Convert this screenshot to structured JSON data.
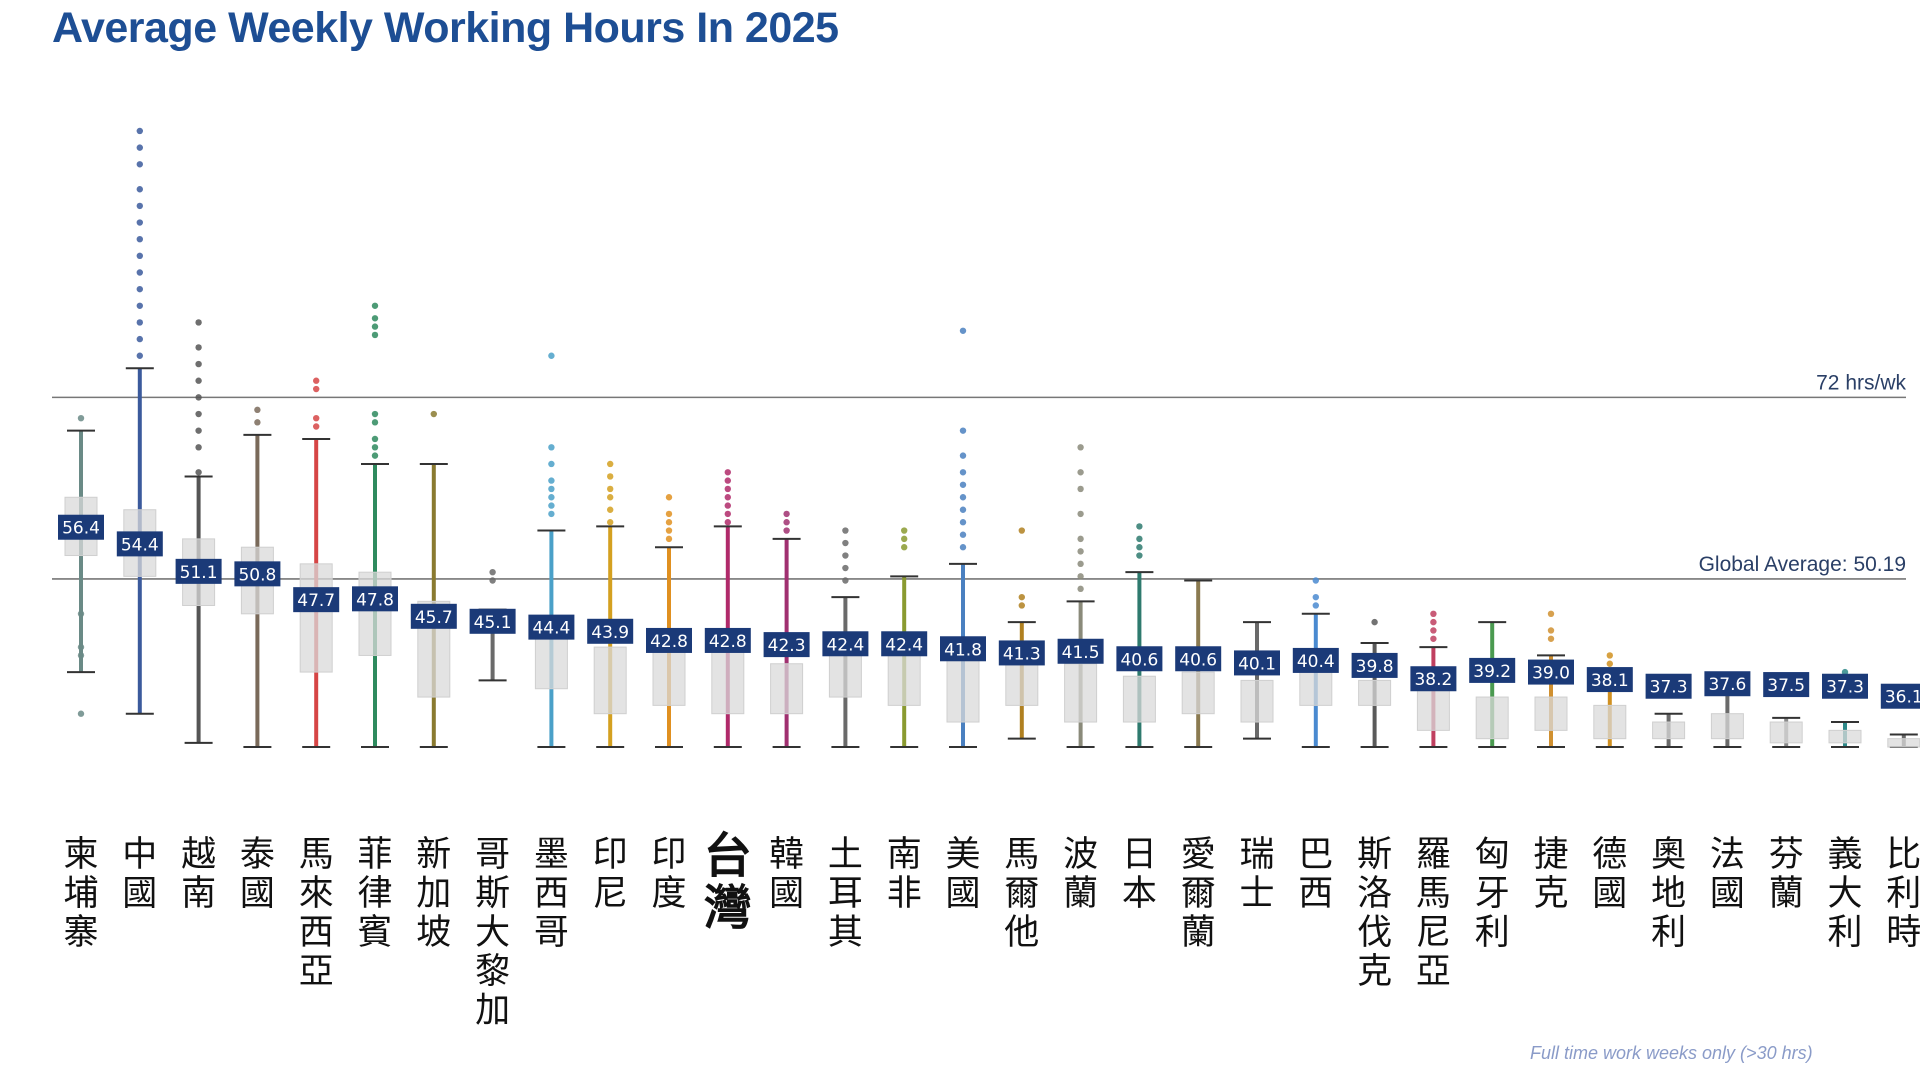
{
  "chart_data": {
    "type": "box",
    "title": "Average Weekly Working Hours In 2025",
    "footnote": "Full time work weeks only (>30 hrs)",
    "reference_lines": [
      {
        "label": "72 hrs/wk",
        "value": 72
      },
      {
        "label": "Global Average: 50.19",
        "value": 50.19
      }
    ],
    "ylim": [
      30,
      107
    ],
    "grid": false,
    "highlight_category": "台灣",
    "label_color": "#1b3a78",
    "series": [
      {
        "category": "柬埔寨",
        "mean_label": "56.4",
        "mean": 56.4,
        "whisker_low": 39.0,
        "q1": 53.0,
        "q3": 60.0,
        "whisker_high": 68.0,
        "color": "#6a8a86",
        "outliers": [
          69.5,
          46.0,
          42.0,
          41.0,
          34.0
        ]
      },
      {
        "category": "中國",
        "mean_label": "54.4",
        "mean": 54.4,
        "whisker_low": 34.0,
        "q1": 50.5,
        "q3": 58.5,
        "whisker_high": 75.5,
        "color": "#3b5a9c",
        "outliers": [
          77.0,
          79.0,
          81.0,
          83.0,
          85.0,
          87.0,
          89.0,
          91.0,
          93.0,
          95.0,
          97.0,
          100.0,
          102.0,
          104.0
        ]
      },
      {
        "category": "越南",
        "mean_label": "51.1",
        "mean": 51.1,
        "whisker_low": 30.5,
        "q1": 47.0,
        "q3": 55.0,
        "whisker_high": 62.5,
        "color": "#555555",
        "outliers": [
          63.0,
          66.0,
          68.0,
          70.0,
          72.0,
          74.0,
          76.0,
          78.0,
          81.0
        ]
      },
      {
        "category": "泰國",
        "mean_label": "50.8",
        "mean": 50.8,
        "whisker_low": 30.0,
        "q1": 46.0,
        "q3": 54.0,
        "whisker_high": 67.5,
        "color": "#7a6a5a",
        "outliers": [
          69.0,
          70.5
        ]
      },
      {
        "category": "馬來西亞",
        "mean_label": "47.7",
        "mean": 47.7,
        "whisker_low": 30.0,
        "q1": 39.0,
        "q3": 52.0,
        "whisker_high": 67.0,
        "color": "#d64545",
        "outliers": [
          68.5,
          69.5,
          73.0,
          74.0
        ]
      },
      {
        "category": "菲律賓",
        "mean_label": "47.8",
        "mean": 47.8,
        "whisker_low": 30.0,
        "q1": 41.0,
        "q3": 51.0,
        "whisker_high": 64.0,
        "color": "#2e8a5e",
        "outliers": [
          65.0,
          66.0,
          67.0,
          69.0,
          70.0,
          79.5,
          80.5,
          81.5,
          83.0
        ]
      },
      {
        "category": "新加坡",
        "mean_label": "45.7",
        "mean": 45.7,
        "whisker_low": 30.0,
        "q1": 36.0,
        "q3": 47.5,
        "whisker_high": 64.0,
        "color": "#8a7a30",
        "outliers": [
          70.0
        ]
      },
      {
        "category": "哥斯大黎加",
        "mean_label": "45.1",
        "mean": 45.1,
        "whisker_low": 38.0,
        "q1": 44.0,
        "q3": 46.0,
        "whisker_high": 46.5,
        "color": "#6a6a6a",
        "outliers": [
          50.0,
          51.0
        ]
      },
      {
        "category": "墨西哥",
        "mean_label": "44.4",
        "mean": 44.4,
        "whisker_low": 30.0,
        "q1": 37.0,
        "q3": 45.5,
        "whisker_high": 56.0,
        "color": "#4aa0c8",
        "outliers": [
          58.0,
          59.0,
          60.0,
          61.0,
          62.0,
          64.0,
          66.0,
          77.0
        ]
      },
      {
        "category": "印尼",
        "mean_label": "43.9",
        "mean": 43.9,
        "whisker_low": 30.0,
        "q1": 34.0,
        "q3": 42.0,
        "whisker_high": 56.5,
        "color": "#d4a020",
        "outliers": [
          57.0,
          58.5,
          60.0,
          61.0,
          62.5,
          64.0
        ]
      },
      {
        "category": "印度",
        "mean_label": "42.8",
        "mean": 42.8,
        "whisker_low": 30.0,
        "q1": 35.0,
        "q3": 42.0,
        "whisker_high": 54.0,
        "color": "#e09020",
        "outliers": [
          55.0,
          56.0,
          57.0,
          58.0,
          60.0
        ]
      },
      {
        "category": "台灣",
        "mean_label": "42.8",
        "mean": 42.8,
        "whisker_low": 30.0,
        "q1": 34.0,
        "q3": 42.5,
        "whisker_high": 56.5,
        "color": "#b02a6a",
        "outliers": [
          57.0,
          58.0,
          59.0,
          60.0,
          61.0,
          62.0,
          63.0
        ]
      },
      {
        "category": "韓國",
        "mean_label": "42.3",
        "mean": 42.3,
        "whisker_low": 30.0,
        "q1": 34.0,
        "q3": 40.0,
        "whisker_high": 55.0,
        "color": "#a03070",
        "outliers": [
          56.0,
          57.0,
          58.0
        ]
      },
      {
        "category": "土耳其",
        "mean_label": "42.4",
        "mean": 42.4,
        "whisker_low": 30.0,
        "q1": 36.0,
        "q3": 43.0,
        "whisker_high": 48.0,
        "color": "#6a6a6a",
        "outliers": [
          50.0,
          51.5,
          53.0,
          54.5,
          56.0
        ]
      },
      {
        "category": "南非",
        "mean_label": "42.4",
        "mean": 42.4,
        "whisker_low": 30.0,
        "q1": 35.0,
        "q3": 42.0,
        "whisker_high": 50.5,
        "color": "#8a9a30",
        "outliers": [
          54.0,
          55.0,
          56.0
        ]
      },
      {
        "category": "美國",
        "mean_label": "41.8",
        "mean": 41.8,
        "whisker_low": 30.0,
        "q1": 33.0,
        "q3": 42.0,
        "whisker_high": 52.0,
        "color": "#4a80c0",
        "outliers": [
          54.0,
          55.5,
          57.0,
          58.5,
          60.0,
          61.5,
          63.0,
          65.0,
          68.0,
          80.0
        ]
      },
      {
        "category": "馬爾他",
        "mean_label": "41.3",
        "mean": 41.3,
        "whisker_low": 31.0,
        "q1": 35.0,
        "q3": 40.0,
        "whisker_high": 45.0,
        "color": "#b08020",
        "outliers": [
          47.0,
          48.0,
          56.0
        ]
      },
      {
        "category": "波蘭",
        "mean_label": "41.5",
        "mean": 41.5,
        "whisker_low": 30.0,
        "q1": 33.0,
        "q3": 40.0,
        "whisker_high": 47.5,
        "color": "#8a8a7a",
        "outliers": [
          49.0,
          50.5,
          52.0,
          53.5,
          55.0,
          58.0,
          61.0,
          63.0,
          66.0
        ]
      },
      {
        "category": "日本",
        "mean_label": "40.6",
        "mean": 40.6,
        "whisker_low": 30.0,
        "q1": 33.0,
        "q3": 38.5,
        "whisker_high": 51.0,
        "color": "#2e7a6e",
        "outliers": [
          53.0,
          54.0,
          55.0,
          56.5
        ]
      },
      {
        "category": "愛爾蘭",
        "mean_label": "40.6",
        "mean": 40.6,
        "whisker_low": 30.0,
        "q1": 34.0,
        "q3": 39.0,
        "whisker_high": 50.0,
        "color": "#8a7a50",
        "outliers": []
      },
      {
        "category": "瑞士",
        "mean_label": "40.1",
        "mean": 40.1,
        "whisker_low": 31.0,
        "q1": 33.0,
        "q3": 38.0,
        "whisker_high": 45.0,
        "color": "#6a6a6a",
        "outliers": []
      },
      {
        "category": "巴西",
        "mean_label": "40.4",
        "mean": 40.4,
        "whisker_low": 30.0,
        "q1": 35.0,
        "q3": 40.0,
        "whisker_high": 46.0,
        "color": "#4a8ad0",
        "outliers": [
          47.0,
          48.0,
          50.0
        ]
      },
      {
        "category": "斯洛伐克",
        "mean_label": "39.8",
        "mean": 39.8,
        "whisker_low": 30.0,
        "q1": 35.0,
        "q3": 38.0,
        "whisker_high": 42.5,
        "color": "#5a5a5a",
        "outliers": [
          45.0
        ]
      },
      {
        "category": "羅馬尼亞",
        "mean_label": "38.2",
        "mean": 38.2,
        "whisker_low": 30.0,
        "q1": 32.0,
        "q3": 37.0,
        "whisker_high": 42.0,
        "color": "#c04060",
        "outliers": [
          43.0,
          44.0,
          45.0,
          46.0
        ]
      },
      {
        "category": "匈牙利",
        "mean_label": "39.2",
        "mean": 39.2,
        "whisker_low": 30.0,
        "q1": 31.0,
        "q3": 36.0,
        "whisker_high": 45.0,
        "color": "#4a9a50",
        "outliers": []
      },
      {
        "category": "捷克",
        "mean_label": "39.0",
        "mean": 39.0,
        "whisker_low": 30.0,
        "q1": 32.0,
        "q3": 36.0,
        "whisker_high": 41.0,
        "color": "#d09030",
        "outliers": [
          43.0,
          44.0,
          46.0
        ]
      },
      {
        "category": "德國",
        "mean_label": "38.1",
        "mean": 38.1,
        "whisker_low": 30.0,
        "q1": 31.0,
        "q3": 35.0,
        "whisker_high": 38.5,
        "color": "#d09020",
        "outliers": [
          40.0,
          41.0
        ]
      },
      {
        "category": "奧地利",
        "mean_label": "37.3",
        "mean": 37.3,
        "whisker_low": 30.0,
        "q1": 31.0,
        "q3": 33.0,
        "whisker_high": 34.0,
        "color": "#6a6a6a",
        "outliers": []
      },
      {
        "category": "法國",
        "mean_label": "37.6",
        "mean": 37.6,
        "whisker_low": 30.0,
        "q1": 31.0,
        "q3": 34.0,
        "whisker_high": 38.5,
        "color": "#6a6a6a",
        "outliers": []
      },
      {
        "category": "芬蘭",
        "mean_label": "37.5",
        "mean": 37.5,
        "whisker_low": 30.0,
        "q1": 30.5,
        "q3": 33.0,
        "whisker_high": 33.5,
        "color": "#8a8a8a",
        "outliers": []
      },
      {
        "category": "義大利",
        "mean_label": "37.3",
        "mean": 37.3,
        "whisker_low": 30.0,
        "q1": 30.5,
        "q3": 32.0,
        "whisker_high": 33.0,
        "color": "#2e8a8a",
        "outliers": [
          38.0,
          39.0
        ]
      },
      {
        "category": "比利時",
        "mean_label": "36.1",
        "mean": 36.1,
        "whisker_low": 30.0,
        "q1": 30.0,
        "q3": 31.0,
        "whisker_high": 31.5,
        "color": "#6a6a6a",
        "outliers": []
      }
    ]
  }
}
